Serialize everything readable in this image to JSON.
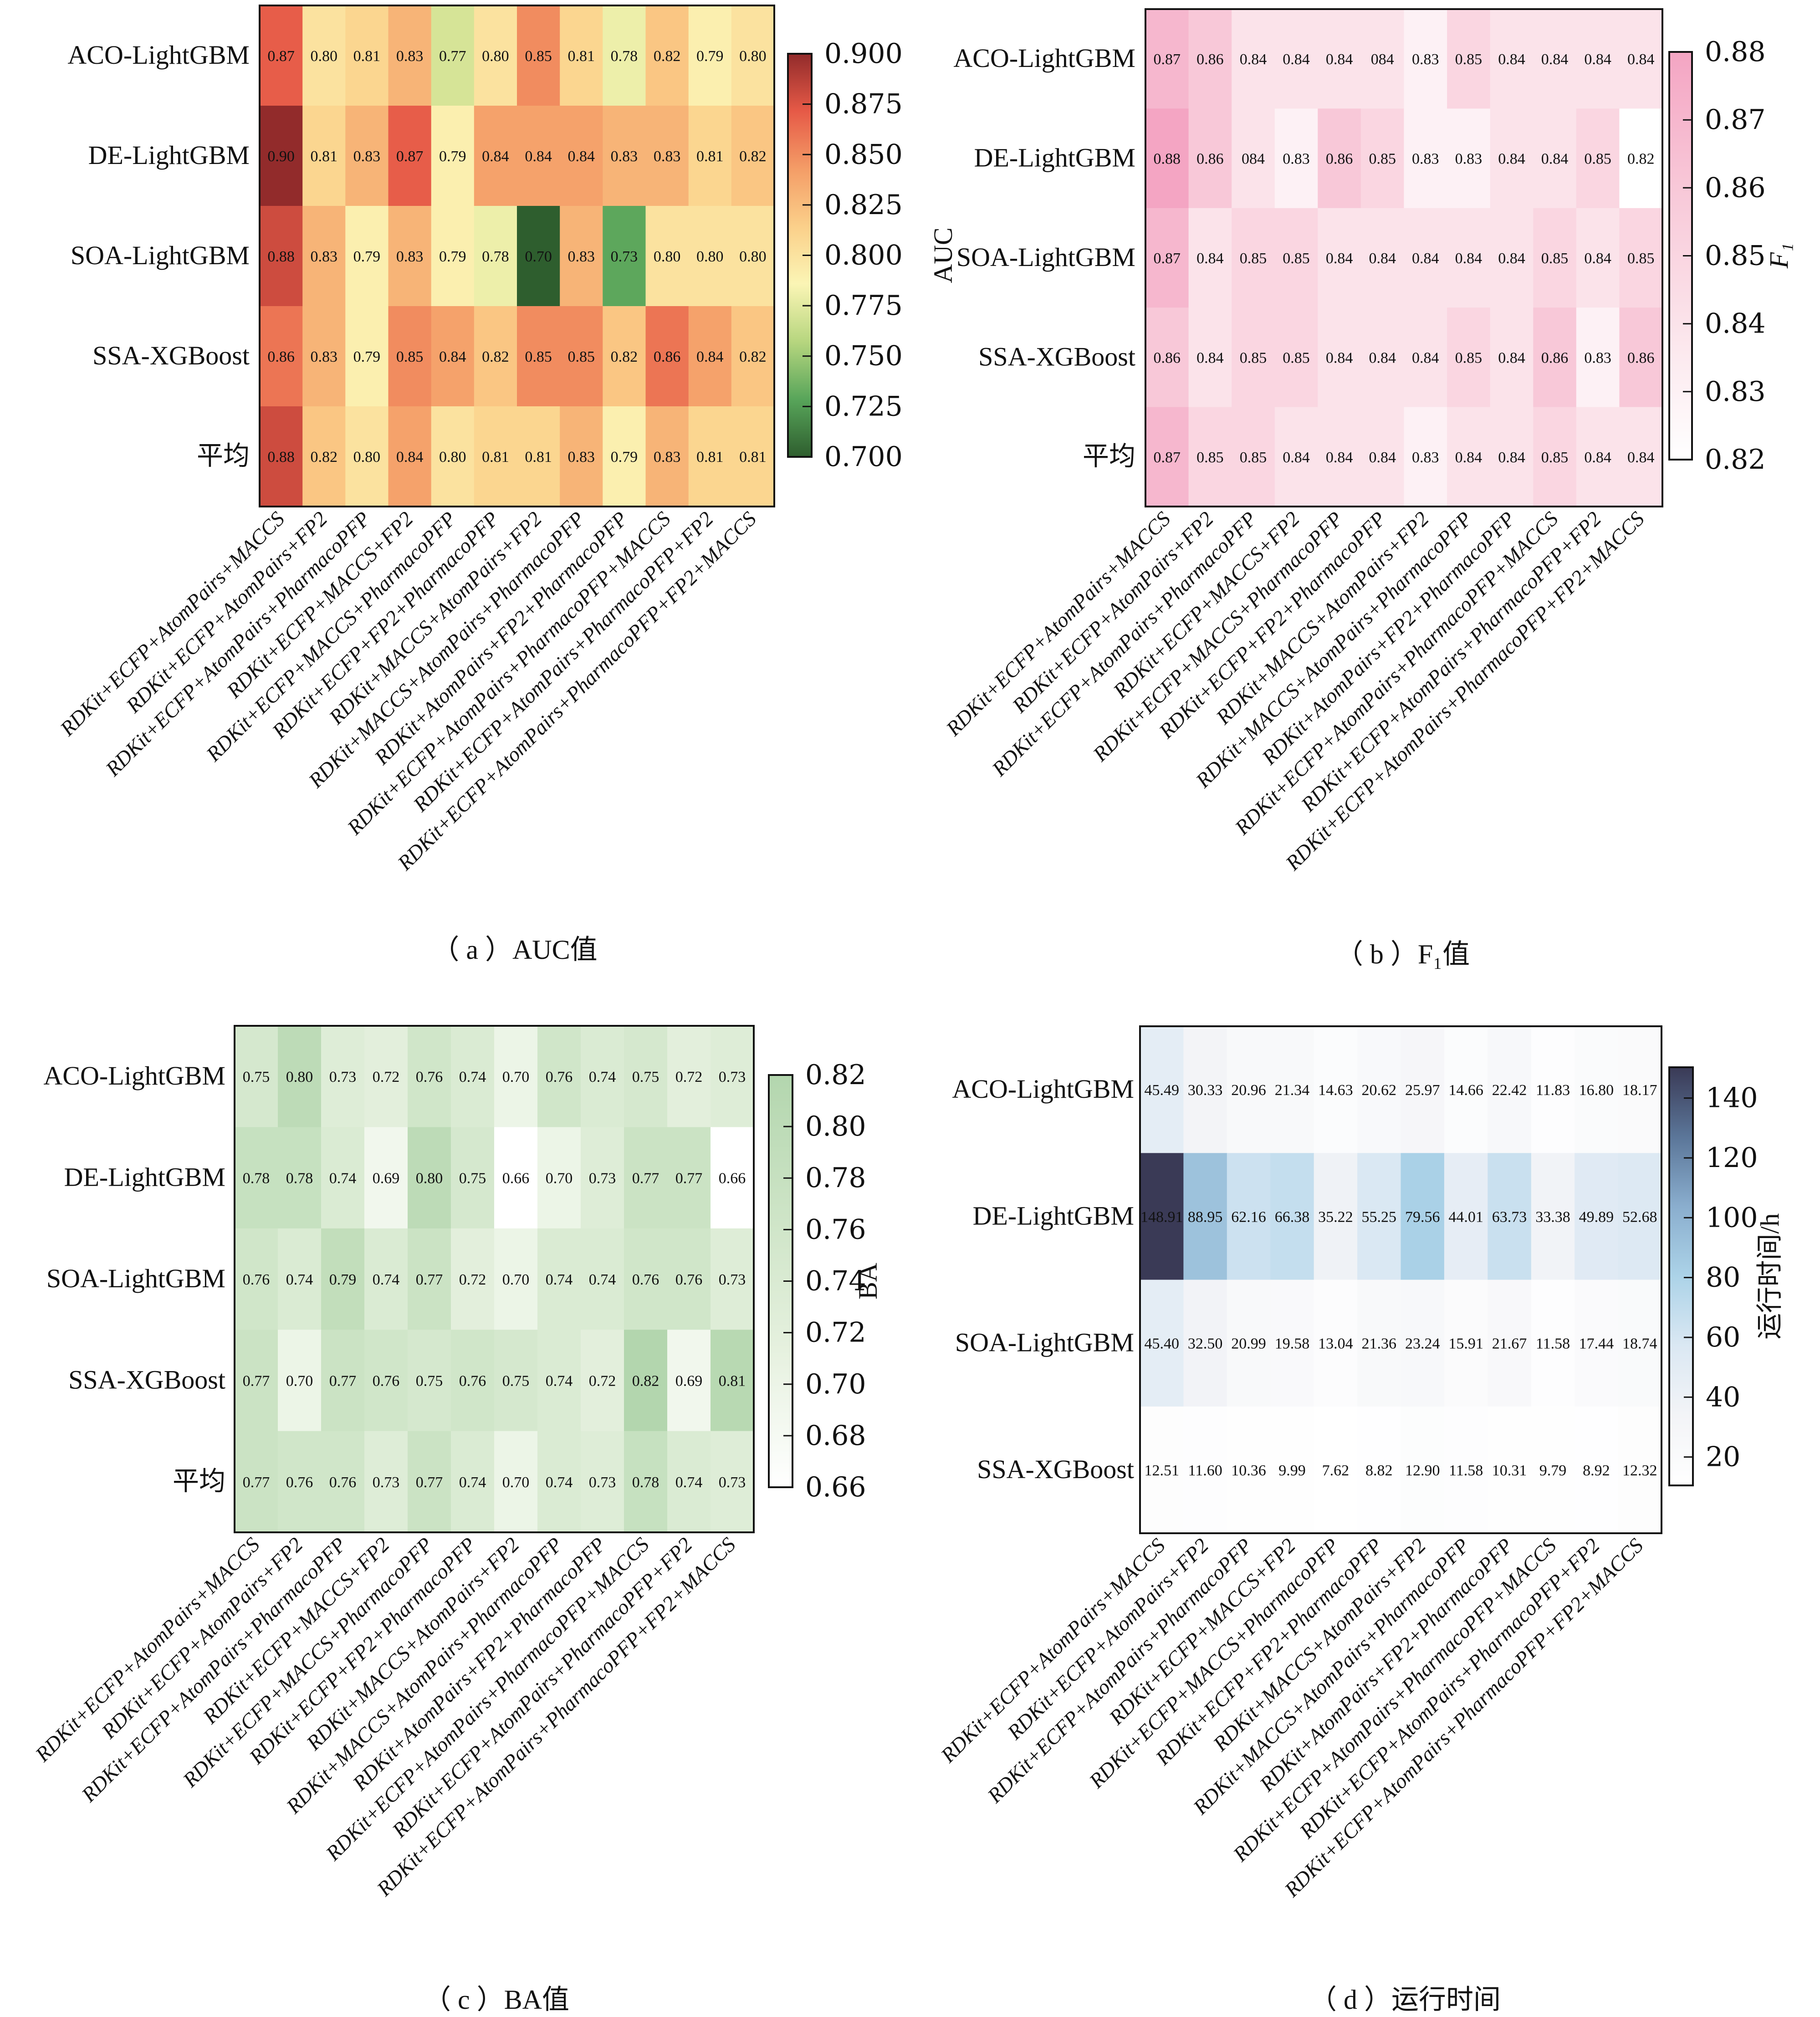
{
  "figure": {
    "panels": [
      "a",
      "b",
      "c",
      "d"
    ]
  },
  "chart_data": [
    {
      "id": "a",
      "type": "heatmap",
      "caption": "（ a ）AUC值",
      "colorbar_label": "AUC",
      "colormap": "RdYlGn (reversed: high=red, low=green)",
      "colormap_stops": [
        "#2e5e2e",
        "#58a55a",
        "#b7d67f",
        "#fbf5b5",
        "#fbd08a",
        "#f49d67",
        "#e65a47",
        "#922b2b"
      ],
      "vmin": 0.7,
      "vmax": 0.9,
      "colorbar_ticks": [
        "0.900",
        "0.875",
        "0.850",
        "0.825",
        "0.800",
        "0.775",
        "0.750",
        "0.725",
        "0.700"
      ],
      "colorbar_tick_values": [
        0.9,
        0.875,
        0.85,
        0.825,
        0.8,
        0.775,
        0.75,
        0.725,
        0.7
      ],
      "rows": [
        "ACO-LightGBM",
        "DE-LightGBM",
        "SOA-LightGBM",
        "SSA-XGBoost",
        "平均"
      ],
      "columns": [
        "RDKit+ECFP+AtomPairs+MACCS",
        "RDKit+ECFP+AtomPairs+FP2",
        "RDKit+ECFP+AtomPairs+PharmacoPFP",
        "RDKit+ECFP+MACCS+FP2",
        "RDKit+ECFP+MACCS+PharmacoPFP",
        "RDKit+ECFP+FP2+PharmacoPFP",
        "RDKit+MACCS+AtomPairs+FP2",
        "RDKit+MACCS+AtomPairs+PharmacoPFP",
        "RDKit+AtomPairs+FP2+PharmacoPFP",
        "RDKit+ECFP+AtomPairs+PharmacoPFP+MACCS",
        "RDKit+ECFP+AtomPairs+PharmacoPFP+FP2",
        "RDKit+ECFP+AtomPairs+PharmacoPFP+FP2+MACCS"
      ],
      "values": [
        [
          0.87,
          0.8,
          0.81,
          0.83,
          0.77,
          0.8,
          0.85,
          0.81,
          0.78,
          0.82,
          0.79,
          0.8
        ],
        [
          0.9,
          0.81,
          0.83,
          0.87,
          0.79,
          0.84,
          0.84,
          0.84,
          0.83,
          0.83,
          0.81,
          0.82
        ],
        [
          0.88,
          0.83,
          0.79,
          0.83,
          0.79,
          0.78,
          0.7,
          0.83,
          0.73,
          0.8,
          0.8,
          0.8
        ],
        [
          0.86,
          0.83,
          0.79,
          0.85,
          0.84,
          0.82,
          0.85,
          0.85,
          0.82,
          0.86,
          0.84,
          0.82
        ],
        [
          0.88,
          0.82,
          0.8,
          0.84,
          0.8,
          0.81,
          0.81,
          0.83,
          0.79,
          0.83,
          0.81,
          0.81
        ]
      ],
      "labels": [
        [
          "0.87",
          "0.80",
          "0.81",
          "0.83",
          "0.77",
          "0.80",
          "0.85",
          "0.81",
          "0.78",
          "0.82",
          "0.79",
          "0.80"
        ],
        [
          "0.90",
          "0.81",
          "0.83",
          "0.87",
          "0.79",
          "0.84",
          "0.84",
          "0.84",
          "0.83",
          "0.83",
          "0.81",
          "0.82"
        ],
        [
          "0.88",
          "0.83",
          "0.79",
          "0.83",
          "0.79",
          "0.78",
          "0.70",
          "0.83",
          "0.73",
          "0.80",
          "0.80",
          "0.80"
        ],
        [
          "0.86",
          "0.83",
          "0.79",
          "0.85",
          "0.84",
          "0.82",
          "0.85",
          "0.85",
          "0.82",
          "0.86",
          "0.84",
          "0.82"
        ],
        [
          "0.88",
          "0.82",
          "0.80",
          "0.84",
          "0.80",
          "0.81",
          "0.81",
          "0.83",
          "0.79",
          "0.83",
          "0.81",
          "0.81"
        ]
      ]
    },
    {
      "id": "b",
      "type": "heatmap",
      "caption": "（ b ）F₁值",
      "colorbar_label": "F₁",
      "colormap": "white to pink",
      "colormap_stops": [
        "#ffffff",
        "#fbe3ea",
        "#f8c8d8",
        "#f4a5c3"
      ],
      "vmin": 0.82,
      "vmax": 0.88,
      "colorbar_ticks": [
        "0.88",
        "0.87",
        "0.86",
        "0.85",
        "0.84",
        "0.83",
        "0.82"
      ],
      "colorbar_tick_values": [
        0.88,
        0.87,
        0.86,
        0.85,
        0.84,
        0.83,
        0.82
      ],
      "rows": [
        "ACO-LightGBM",
        "DE-LightGBM",
        "SOA-LightGBM",
        "SSA-XGBoost",
        "平均"
      ],
      "columns": [
        "RDKit+ECFP+AtomPairs+MACCS",
        "RDKit+ECFP+AtomPairs+FP2",
        "RDKit+ECFP+AtomPairs+PharmacoPFP",
        "RDKit+ECFP+MACCS+FP2",
        "RDKit+ECFP+MACCS+PharmacoPFP",
        "RDKit+ECFP+FP2+PharmacoPFP",
        "RDKit+MACCS+AtomPairs+FP2",
        "RDKit+MACCS+AtomPairs+PharmacoPFP",
        "RDKit+AtomPairs+FP2+PharmacoPFP",
        "RDKit+ECFP+AtomPairs+PharmacoPFP+MACCS",
        "RDKit+ECFP+AtomPairs+PharmacoPFP+FP2",
        "RDKit+ECFP+AtomPairs+PharmacoPFP+FP2+MACCS"
      ],
      "values": [
        [
          0.87,
          0.86,
          0.84,
          0.84,
          0.84,
          0.84,
          0.83,
          0.85,
          0.84,
          0.84,
          0.84,
          0.84
        ],
        [
          0.88,
          0.86,
          0.84,
          0.83,
          0.86,
          0.85,
          0.83,
          0.83,
          0.84,
          0.84,
          0.85,
          0.82
        ],
        [
          0.87,
          0.84,
          0.85,
          0.85,
          0.84,
          0.84,
          0.84,
          0.84,
          0.84,
          0.85,
          0.84,
          0.85
        ],
        [
          0.86,
          0.84,
          0.85,
          0.85,
          0.84,
          0.84,
          0.84,
          0.85,
          0.84,
          0.86,
          0.83,
          0.86
        ],
        [
          0.87,
          0.85,
          0.85,
          0.84,
          0.84,
          0.84,
          0.83,
          0.84,
          0.84,
          0.85,
          0.84,
          0.84
        ]
      ],
      "labels": [
        [
          "0.87",
          "0.86",
          "0.84",
          "0.84",
          "0.84",
          "084",
          "0.83",
          "0.85",
          "0.84",
          "0.84",
          "0.84",
          "0.84"
        ],
        [
          "0.88",
          "0.86",
          "084",
          "0.83",
          "0.86",
          "0.85",
          "0.83",
          "0.83",
          "0.84",
          "0.84",
          "0.85",
          "0.82"
        ],
        [
          "0.87",
          "0.84",
          "0.85",
          "0.85",
          "0.84",
          "0.84",
          "0.84",
          "0.84",
          "0.84",
          "0.85",
          "0.84",
          "0.85"
        ],
        [
          "0.86",
          "0.84",
          "0.85",
          "0.85",
          "0.84",
          "0.84",
          "0.84",
          "0.85",
          "0.84",
          "0.86",
          "0.83",
          "0.86"
        ],
        [
          "0.87",
          "0.85",
          "0.85",
          "0.84",
          "0.84",
          "0.84",
          "0.83",
          "0.84",
          "0.84",
          "0.85",
          "0.84",
          "0.84"
        ]
      ]
    },
    {
      "id": "c",
      "type": "heatmap",
      "caption": "（ c ）BA值",
      "colorbar_label": "BA",
      "colormap": "white to green",
      "colormap_stops": [
        "#ffffff",
        "#e6f1df",
        "#cde4c6",
        "#b3d6ae"
      ],
      "vmin": 0.66,
      "vmax": 0.82,
      "colorbar_ticks": [
        "0.82",
        "0.80",
        "0.78",
        "0.76",
        "0.74",
        "0.72",
        "0.70",
        "0.68",
        "0.66"
      ],
      "colorbar_tick_values": [
        0.82,
        0.8,
        0.78,
        0.76,
        0.74,
        0.72,
        0.7,
        0.68,
        0.66
      ],
      "rows": [
        "ACO-LightGBM",
        "DE-LightGBM",
        "SOA-LightGBM",
        "SSA-XGBoost",
        "平均"
      ],
      "columns": [
        "RDKit+ECFP+AtomPairs+MACCS",
        "RDKit+ECFP+AtomPairs+FP2",
        "RDKit+ECFP+AtomPairs+PharmacoPFP",
        "RDKit+ECFP+MACCS+FP2",
        "RDKit+ECFP+MACCS+PharmacoPFP",
        "RDKit+ECFP+FP2+PharmacoPFP",
        "RDKit+MACCS+AtomPairs+FP2",
        "RDKit+MACCS+AtomPairs+PharmacoPFP",
        "RDKit+AtomPairs+FP2+PharmacoPFP",
        "RDKit+ECFP+AtomPairs+PharmacoPFP+MACCS",
        "RDKit+ECFP+AtomPairs+PharmacoPFP+FP2",
        "RDKit+ECFP+AtomPairs+PharmacoPFP+FP2+MACCS"
      ],
      "values": [
        [
          0.75,
          0.8,
          0.73,
          0.72,
          0.76,
          0.74,
          0.7,
          0.76,
          0.74,
          0.75,
          0.72,
          0.73
        ],
        [
          0.78,
          0.78,
          0.74,
          0.69,
          0.8,
          0.75,
          0.66,
          0.7,
          0.73,
          0.77,
          0.77,
          0.66
        ],
        [
          0.76,
          0.74,
          0.79,
          0.74,
          0.77,
          0.72,
          0.7,
          0.74,
          0.74,
          0.76,
          0.76,
          0.73
        ],
        [
          0.77,
          0.7,
          0.77,
          0.76,
          0.75,
          0.76,
          0.75,
          0.74,
          0.72,
          0.82,
          0.69,
          0.81
        ],
        [
          0.77,
          0.76,
          0.76,
          0.73,
          0.77,
          0.74,
          0.7,
          0.74,
          0.73,
          0.78,
          0.74,
          0.73
        ]
      ],
      "labels": [
        [
          "0.75",
          "0.80",
          "0.73",
          "0.72",
          "0.76",
          "0.74",
          "0.70",
          "0.76",
          "0.74",
          "0.75",
          "0.72",
          "0.73"
        ],
        [
          "0.78",
          "0.78",
          "0.74",
          "0.69",
          "0.80",
          "0.75",
          "0.66",
          "0.70",
          "0.73",
          "0.77",
          "0.77",
          "0.66"
        ],
        [
          "0.76",
          "0.74",
          "0.79",
          "0.74",
          "0.77",
          "0.72",
          "0.70",
          "0.74",
          "0.74",
          "0.76",
          "0.76",
          "0.73"
        ],
        [
          "0.77",
          "0.70",
          "0.77",
          "0.76",
          "0.75",
          "0.76",
          "0.75",
          "0.74",
          "0.72",
          "0.82",
          "0.69",
          "0.81"
        ],
        [
          "0.77",
          "0.76",
          "0.76",
          "0.73",
          "0.77",
          "0.74",
          "0.70",
          "0.74",
          "0.73",
          "0.78",
          "0.74",
          "0.73"
        ]
      ]
    },
    {
      "id": "d",
      "type": "heatmap",
      "caption": "（ d ）运行时间",
      "colorbar_label": "运行时间/h",
      "colormap": "white to light blue to dark navy",
      "colormap_stops": [
        "#ffffff",
        "#f3f4f7",
        "#dbe8f3",
        "#acd3e8",
        "#8aaece",
        "#5b7699",
        "#3a3a56"
      ],
      "vmin": 7.62,
      "vmax": 148.91,
      "colorbar_ticks": [
        "140",
        "120",
        "100",
        "80",
        "60",
        "40",
        "20"
      ],
      "colorbar_tick_values": [
        140,
        120,
        100,
        80,
        60,
        40,
        20
      ],
      "rows": [
        "ACO-LightGBM",
        "DE-LightGBM",
        "SOA-LightGBM",
        "SSA-XGBoost"
      ],
      "columns": [
        "RDKit+ECFP+AtomPairs+MACCS",
        "RDKit+ECFP+AtomPairs+FP2",
        "RDKit+ECFP+AtomPairs+PharmacoPFP",
        "RDKit+ECFP+MACCS+FP2",
        "RDKit+ECFP+MACCS+PharmacoPFP",
        "RDKit+ECFP+FP2+PharmacoPFP",
        "RDKit+MACCS+AtomPairs+FP2",
        "RDKit+MACCS+AtomPairs+PharmacoPFP",
        "RDKit+AtomPairs+FP2+PharmacoPFP",
        "RDKit+ECFP+AtomPairs+PharmacoPFP+MACCS",
        "RDKit+ECFP+AtomPairs+PharmacoPFP+FP2",
        "RDKit+ECFP+AtomPairs+PharmacoPFP+FP2+MACCS"
      ],
      "values": [
        [
          45.49,
          30.33,
          20.96,
          21.34,
          14.63,
          20.62,
          25.97,
          14.66,
          22.42,
          11.83,
          16.8,
          18.17
        ],
        [
          148.91,
          88.95,
          62.16,
          66.38,
          35.22,
          55.25,
          79.56,
          44.01,
          63.73,
          33.38,
          49.89,
          52.68
        ],
        [
          45.4,
          32.5,
          20.99,
          19.58,
          13.04,
          21.36,
          23.24,
          15.91,
          21.67,
          11.58,
          17.44,
          18.74
        ],
        [
          12.51,
          11.6,
          10.36,
          9.99,
          7.62,
          8.82,
          12.9,
          11.58,
          10.31,
          9.79,
          8.92,
          12.32
        ]
      ],
      "labels": [
        [
          "45.49",
          "30.33",
          "20.96",
          "21.34",
          "14.63",
          "20.62",
          "25.97",
          "14.66",
          "22.42",
          "11.83",
          "16.80",
          "18.17"
        ],
        [
          "148.91",
          "88.95",
          "62.16",
          "66.38",
          "35.22",
          "55.25",
          "79.56",
          "44.01",
          "63.73",
          "33.38",
          "49.89",
          "52.68"
        ],
        [
          "45.40",
          "32.50",
          "20.99",
          "19.58",
          "13.04",
          "21.36",
          "23.24",
          "15.91",
          "21.67",
          "11.58",
          "17.44",
          "18.74"
        ],
        [
          "12.51",
          "11.60",
          "10.36",
          "9.99",
          "7.62",
          "8.82",
          "12.90",
          "11.58",
          "10.31",
          "9.79",
          "8.92",
          "12.32"
        ]
      ]
    }
  ]
}
